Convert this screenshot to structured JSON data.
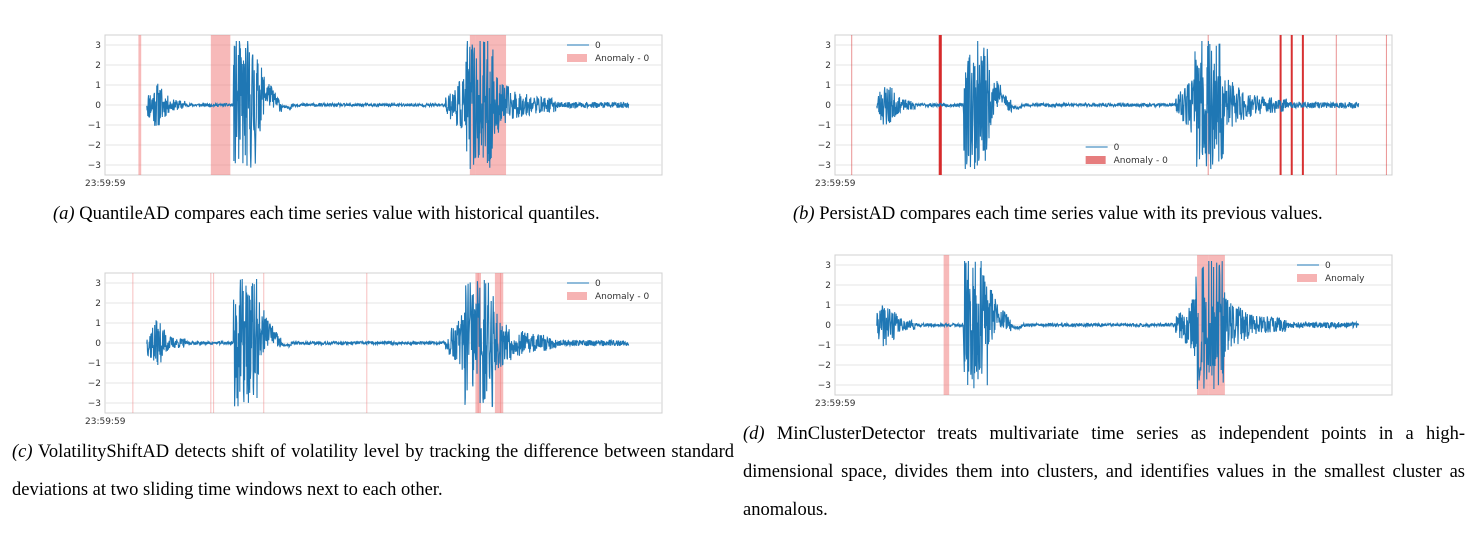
{
  "figure": {
    "panels": [
      {
        "id": "a",
        "caption_tag": "(a)",
        "caption_text": "QuantileAD compares each time series value with historical quantiles.",
        "legend": [
          "0",
          "Anomaly - 0"
        ],
        "x_start_label": "23:59:59",
        "legend_position": "top-right"
      },
      {
        "id": "b",
        "caption_tag": "(b)",
        "caption_text": "PersistAD compares each time series value with its previous values.",
        "legend": [
          "0",
          "Anomaly - 0"
        ],
        "x_start_label": "23:59:59",
        "legend_position": "bottom-center"
      },
      {
        "id": "c",
        "caption_tag": "(c)",
        "caption_text": "VolatilityShiftAD detects shift of volatility level by tracking the difference between standard deviations at two sliding time windows next to each other.",
        "legend": [
          "0",
          "Anomaly - 0"
        ],
        "x_start_label": "23:59:59",
        "legend_position": "top-right"
      },
      {
        "id": "d",
        "caption_tag": "(d)",
        "caption_text": "MinClusterDetector treats multivariate time series as independent points in a high-dimensional space, divides them into clusters, and identifies values in the smallest cluster as anomalous.",
        "legend": [
          "0",
          "Anomaly"
        ],
        "x_start_label": "23:59:59",
        "legend_position": "top-right"
      }
    ]
  },
  "chart_data": [
    {
      "type": "line",
      "panel": "a",
      "y_ticks": [
        3,
        2,
        1,
        0,
        -1,
        -2,
        -3
      ],
      "ylim": [
        -3.5,
        3.5
      ],
      "xlim": [
        0,
        1
      ],
      "grid": true,
      "series": [
        {
          "name": "0",
          "color": "#1f77b4"
        }
      ],
      "anomaly_color": "#f08080",
      "anomaly_spans": [
        [
          0.06,
          0.065
        ],
        [
          0.19,
          0.225
        ],
        [
          0.655,
          0.665
        ],
        [
          0.665,
          0.72
        ]
      ]
    },
    {
      "type": "line",
      "panel": "b",
      "y_ticks": [
        3,
        2,
        1,
        0,
        -1,
        -2,
        -3
      ],
      "ylim": [
        -3.5,
        3.5
      ],
      "xlim": [
        0,
        1
      ],
      "grid": true,
      "series": [
        {
          "name": "0",
          "color": "#1f77b4"
        }
      ],
      "anomaly_color": "#d62728",
      "anomaly_lines": [
        0.03,
        0.188,
        0.19,
        0.67,
        0.8,
        0.82,
        0.84,
        0.9,
        0.99
      ],
      "anomaly_strong": [
        0.188,
        0.19,
        0.8,
        0.82,
        0.84
      ]
    },
    {
      "type": "line",
      "panel": "c",
      "y_ticks": [
        3,
        2,
        1,
        0,
        -1,
        -2,
        -3
      ],
      "ylim": [
        -3.5,
        3.5
      ],
      "xlim": [
        0,
        1
      ],
      "grid": true,
      "series": [
        {
          "name": "0",
          "color": "#1f77b4"
        }
      ],
      "anomaly_color": "#f08080",
      "anomaly_lines": [
        0.05,
        0.19,
        0.195,
        0.285,
        0.47,
        0.67,
        0.71
      ],
      "anomaly_spans": [
        [
          0.665,
          0.675
        ],
        [
          0.7,
          0.715
        ]
      ]
    },
    {
      "type": "line",
      "panel": "d",
      "y_ticks": [
        3,
        2,
        1,
        0,
        -1,
        -2,
        -3
      ],
      "ylim": [
        -3.5,
        3.5
      ],
      "xlim": [
        0,
        1
      ],
      "grid": true,
      "series": [
        {
          "name": "0",
          "color": "#1f77b4"
        }
      ],
      "anomaly_color": "#f08080",
      "anomaly_spans": [
        [
          0.195,
          0.205
        ],
        [
          0.65,
          0.67
        ],
        [
          0.67,
          0.7
        ]
      ]
    }
  ]
}
